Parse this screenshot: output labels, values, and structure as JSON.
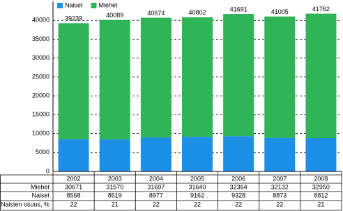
{
  "chart_data": {
    "type": "bar",
    "stacked": true,
    "categories": [
      "2002",
      "2003",
      "2004",
      "2005",
      "2006",
      "2007",
      "2008"
    ],
    "series": [
      {
        "name": "Naiset",
        "color": "#1e8fe6",
        "values": [
          8568,
          8519,
          8977,
          9162,
          9328,
          8873,
          8812
        ]
      },
      {
        "name": "Miehet",
        "color": "#2fb457",
        "values": [
          30671,
          31570,
          31697,
          31640,
          32364,
          32132,
          32950
        ]
      }
    ],
    "totals": [
      39239,
      40089,
      40674,
      40802,
      41691,
      41005,
      41762
    ],
    "ylim": [
      0,
      45000
    ],
    "yticks": [
      0,
      5000,
      10000,
      15000,
      20000,
      25000,
      30000,
      35000,
      40000
    ],
    "grid": true,
    "legend": "top-left"
  },
  "table": {
    "rows": [
      {
        "label": "Naisten osuus, %",
        "values": [
          22,
          21,
          22,
          22,
          22,
          22,
          21
        ]
      }
    ]
  }
}
